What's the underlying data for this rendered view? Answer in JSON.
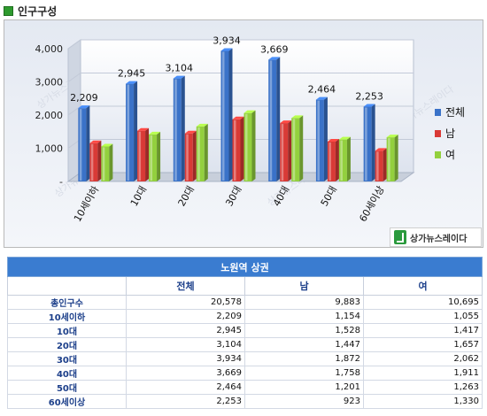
{
  "header": {
    "title": "인구구성"
  },
  "chart_data": {
    "type": "bar",
    "categories": [
      "10세이하",
      "10대",
      "20대",
      "30대",
      "40대",
      "50대",
      "60세이상"
    ],
    "series": [
      {
        "name": "전체",
        "values": [
          2209,
          2945,
          3104,
          3934,
          3669,
          2464,
          2253
        ],
        "color": "#3a72c8"
      },
      {
        "name": "남",
        "values": [
          1154,
          1528,
          1447,
          1872,
          1758,
          1201,
          923
        ],
        "color": "#d93a36"
      },
      {
        "name": "여",
        "values": [
          1055,
          1417,
          1657,
          2062,
          1911,
          1263,
          1330
        ],
        "color": "#93d03e"
      }
    ],
    "data_labels": [
      "2,209",
      "2,945",
      "3,104",
      "3,934",
      "3,669",
      "2,464",
      "2,253"
    ],
    "y_ticks": [
      "-",
      "1,000",
      "2,000",
      "3,000",
      "4,000"
    ],
    "ylim": [
      0,
      4000
    ],
    "legend_position": "right",
    "watermark": "상가뉴스레이다"
  },
  "logo": {
    "text": "상가뉴스레이다"
  },
  "table": {
    "caption": "노원역 상권",
    "headers": [
      "",
      "전체",
      "남",
      "여"
    ],
    "rows": [
      {
        "label": "총인구수",
        "total": "20,578",
        "male": "9,883",
        "female": "10,695"
      },
      {
        "label": "10세이하",
        "total": "2,209",
        "male": "1,154",
        "female": "1,055"
      },
      {
        "label": "10대",
        "total": "2,945",
        "male": "1,528",
        "female": "1,417"
      },
      {
        "label": "20대",
        "total": "3,104",
        "male": "1,447",
        "female": "1,657"
      },
      {
        "label": "30대",
        "total": "3,934",
        "male": "1,872",
        "female": "2,062"
      },
      {
        "label": "40대",
        "total": "3,669",
        "male": "1,758",
        "female": "1,911"
      },
      {
        "label": "50대",
        "total": "2,464",
        "male": "1,201",
        "female": "1,263"
      },
      {
        "label": "60세이상",
        "total": "2,253",
        "male": "923",
        "female": "1,330"
      }
    ]
  }
}
